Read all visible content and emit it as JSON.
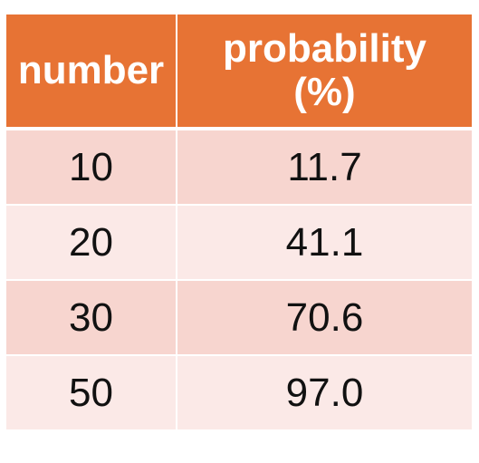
{
  "table": {
    "headers": {
      "col1": "number",
      "col2_line1": "probability",
      "col2_line2": "(%)"
    },
    "rows": [
      {
        "number": "10",
        "probability": "11.7"
      },
      {
        "number": "20",
        "probability": "41.1"
      },
      {
        "number": "30",
        "probability": "70.6"
      },
      {
        "number": "50",
        "probability": "97.0"
      }
    ]
  },
  "colors": {
    "header_bg": "#e77334",
    "row_odd_bg": "#f7d5cf",
    "row_even_bg": "#fbe9e7"
  }
}
